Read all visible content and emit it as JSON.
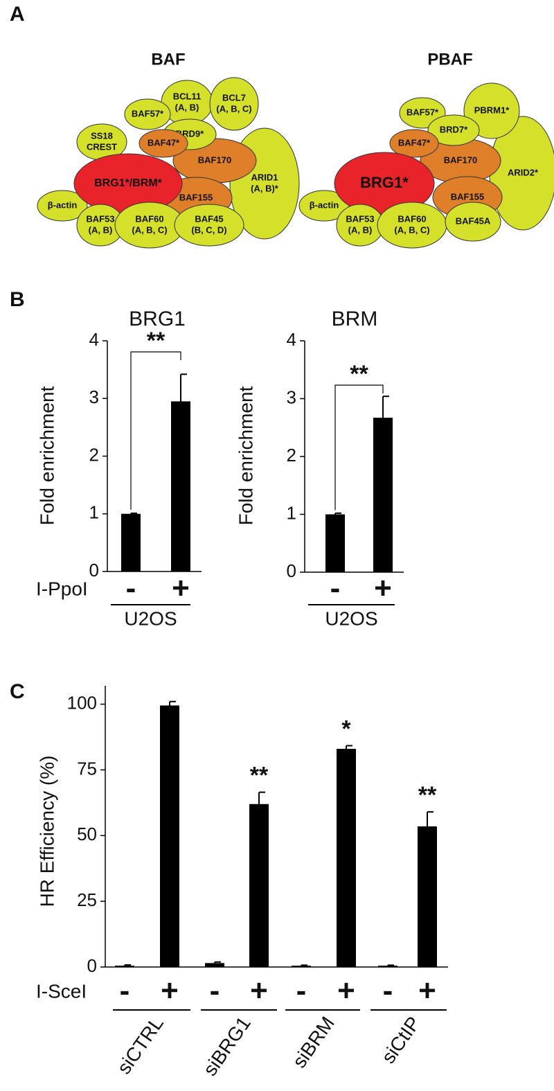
{
  "panel_labels": [
    "A",
    "B",
    "C"
  ],
  "diagram": {
    "complexes": [
      {
        "title": "BAF",
        "nodes": [
          {
            "label": [
              "ARID1",
              "(A, B)*"
            ]
          },
          {
            "label": [
              "BCL11",
              "(A, B)"
            ]
          },
          {
            "label": [
              "BCL7",
              "(A, B, C)"
            ]
          },
          {
            "label": [
              "SS18",
              "CREST"
            ]
          },
          {
            "label": [
              "BAF170"
            ]
          },
          {
            "label": [
              "BAF155"
            ]
          },
          {
            "label": [
              "BAF57*"
            ]
          },
          {
            "label": [
              "BRD9*"
            ]
          },
          {
            "label": [
              "BAF47*"
            ]
          },
          {
            "label": [
              "β-actin"
            ]
          },
          {
            "label": [
              "BRG1*/BRM*"
            ]
          },
          {
            "label": [
              "BAF53",
              "(A, B)"
            ]
          },
          {
            "label": [
              "BAF60",
              "(A, B, C)"
            ]
          },
          {
            "label": [
              "BAF45",
              "(B, C, D)"
            ]
          }
        ]
      },
      {
        "title": "PBAF",
        "nodes": [
          {
            "label": [
              "ARID2*"
            ]
          },
          {
            "label": [
              "PBRM1*"
            ]
          },
          {
            "label": [
              "BAF57*"
            ]
          },
          {
            "label": [
              "BAF170"
            ]
          },
          {
            "label": [
              "BAF155"
            ]
          },
          {
            "label": [
              "BRD7*"
            ]
          },
          {
            "label": [
              "BAF47*"
            ]
          },
          {
            "label": [
              "β-actin"
            ]
          },
          {
            "label": [
              "BRG1*"
            ]
          },
          {
            "label": [
              "BAF53",
              "(A, B)"
            ]
          },
          {
            "label": [
              "BAF60",
              "(A, B, C)"
            ]
          },
          {
            "label": [
              "BAF45A"
            ]
          }
        ]
      }
    ]
  },
  "chart_data": [
    {
      "type": "bar",
      "title": "BRG1",
      "y_label": "Fold enrichment",
      "row_label": "I-PpoI",
      "group_label": "U2OS",
      "categories": [
        "-",
        "+"
      ],
      "values": [
        1.0,
        2.95
      ],
      "errors": [
        0.01,
        0.47
      ],
      "color": "#000000",
      "significance": "**",
      "ylim": [
        0,
        4
      ],
      "yticks": [
        0,
        1,
        2,
        3,
        4
      ]
    },
    {
      "type": "bar",
      "title": "BRM",
      "y_label": "Fold enrichment",
      "group_label": "U2OS",
      "categories": [
        "-",
        "+"
      ],
      "values": [
        1.0,
        2.67
      ],
      "errors": [
        0.02,
        0.37
      ],
      "color": "#000000",
      "significance": "**",
      "ylim": [
        0,
        4
      ],
      "yticks": [
        0,
        1,
        2,
        3,
        4
      ]
    },
    {
      "type": "bar",
      "y_label": "HR Efficiency (%)",
      "row_label": "I-SceI",
      "groups": [
        "siCTRL",
        "siBRG1",
        "siBRM",
        "siCtIP"
      ],
      "categories": [
        "-",
        "+",
        "-",
        "+",
        "-",
        "+",
        "-",
        "+"
      ],
      "values": [
        0.5,
        99.5,
        1.5,
        62,
        0.5,
        83,
        0.5,
        53.5
      ],
      "errors": [
        0.3,
        1.5,
        0.4,
        4.5,
        0.2,
        1.2,
        0.2,
        5.5
      ],
      "color": "#000000",
      "significance": [
        null,
        null,
        null,
        "**",
        null,
        "*",
        null,
        "**"
      ],
      "ylim": [
        0,
        107
      ],
      "yticks": [
        0,
        25,
        50,
        75,
        100
      ]
    }
  ]
}
